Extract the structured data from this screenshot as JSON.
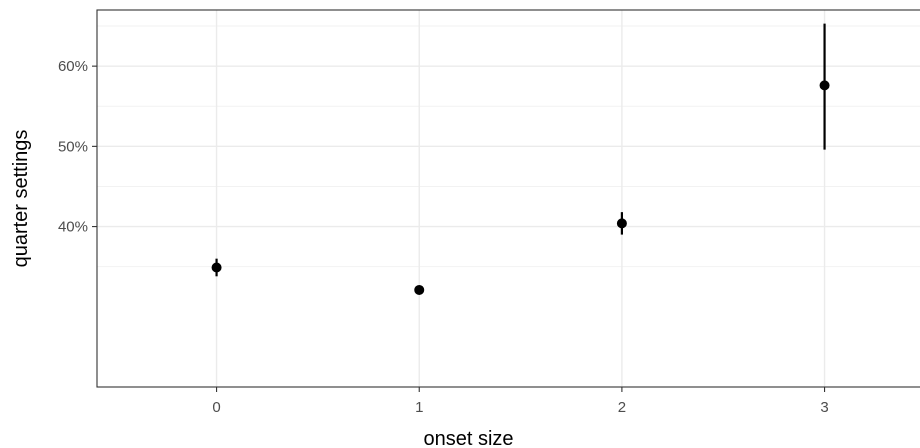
{
  "chart_data": {
    "type": "scatter",
    "title": "",
    "xlabel": "onset size",
    "ylabel": "quarter settings",
    "x_ticks": [
      "0",
      "1",
      "2",
      "3"
    ],
    "y_ticks": [
      "40%",
      "50%",
      "60%"
    ],
    "xlim": [
      -0.59,
      3.54
    ],
    "ylim": [
      20,
      67
    ],
    "grid": true,
    "legend": "none",
    "series": [
      {
        "points": [
          {
            "x": 0,
            "y": 34.9,
            "ymin": 33.8,
            "ymax": 36.0
          },
          {
            "x": 1,
            "y": 32.1,
            "ymin": 32.1,
            "ymax": 32.1
          },
          {
            "x": 2,
            "y": 40.4,
            "ymin": 39.0,
            "ymax": 41.8
          },
          {
            "x": 3,
            "y": 57.6,
            "ymin": 49.6,
            "ymax": 65.3
          }
        ]
      }
    ],
    "colors": {
      "point": "#000000",
      "grid_major": "#ebebeb",
      "grid_minor": "#f2f2f2",
      "panel_border": "#333333",
      "tick_label": "#4d4d4d"
    }
  }
}
